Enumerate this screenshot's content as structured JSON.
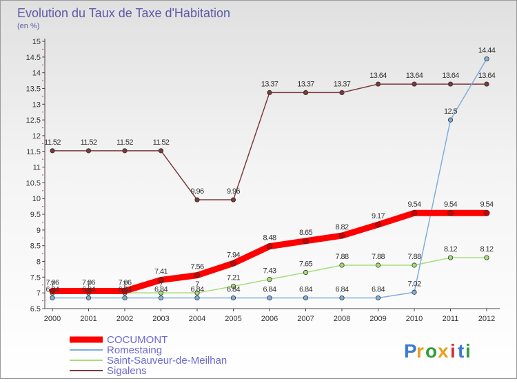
{
  "chart_data": {
    "type": "line",
    "title": "Evolution du Taux de Taxe d'Habitation",
    "subtitle": "(en %)",
    "x": [
      "2000",
      "2001",
      "2002",
      "2003",
      "2004",
      "2005",
      "2006",
      "2007",
      "2008",
      "2009",
      "2010",
      "2011",
      "2012"
    ],
    "ylim": [
      6.5,
      15
    ],
    "yticks": [
      "6.5",
      "7",
      "7.5",
      "8",
      "8.5",
      "9",
      "9.5",
      "10",
      "10.5",
      "11",
      "11.5",
      "12",
      "12.5",
      "13",
      "13.5",
      "14",
      "14.5",
      "15"
    ],
    "grid": false,
    "legend_position": "bottom-left",
    "series": [
      {
        "name": "COCUMONT",
        "color": "#ff0000",
        "values": [
          7.06,
          7.06,
          7.06,
          7.41,
          7.56,
          7.94,
          8.48,
          8.65,
          8.82,
          9.17,
          9.54,
          9.54,
          9.54
        ],
        "labels": [
          "7.06",
          "7.06",
          "7.06",
          "7.41",
          "7.56",
          "7.94",
          "8.48",
          "8.65",
          "8.82",
          "9.17",
          "9.54",
          "9.54",
          "9.54"
        ]
      },
      {
        "name": "Romestaing",
        "color": "#7faedb",
        "values": [
          6.84,
          6.84,
          6.84,
          6.84,
          6.84,
          6.84,
          6.84,
          6.84,
          6.84,
          6.84,
          7.02,
          12.5,
          14.44
        ],
        "labels": [
          "6.84",
          "6.84",
          "6.84",
          "6.84",
          "6.84",
          "6.84",
          "6.84",
          "6.84",
          "6.84",
          "6.84",
          "7.02",
          "12.5",
          "14.44"
        ]
      },
      {
        "name": "Saint-Sauveur-de-Meilhan",
        "color": "#a8dc78",
        "values": [
          7,
          7,
          7,
          7,
          7,
          7.21,
          7.43,
          7.65,
          7.88,
          7.88,
          7.88,
          8.12,
          8.12
        ],
        "labels": [
          "7",
          "7",
          "7",
          "7",
          "7",
          "7.21",
          "7.43",
          "7.65",
          "7.88",
          "7.88",
          "7.88",
          "8.12",
          "8.12"
        ]
      },
      {
        "name": "Sigalens",
        "color": "#7a3a3a",
        "values": [
          11.52,
          11.52,
          11.52,
          11.52,
          9.96,
          9.96,
          13.37,
          13.37,
          13.37,
          13.64,
          13.64,
          13.64,
          13.64
        ],
        "labels": [
          "11.52",
          "11.52",
          "11.52",
          "11.52",
          "9.96",
          "9.96",
          "13.37",
          "13.37",
          "13.37",
          "13.64",
          "13.64",
          "13.64",
          "13.64"
        ]
      }
    ]
  },
  "logo": {
    "text": "Proxiti"
  }
}
